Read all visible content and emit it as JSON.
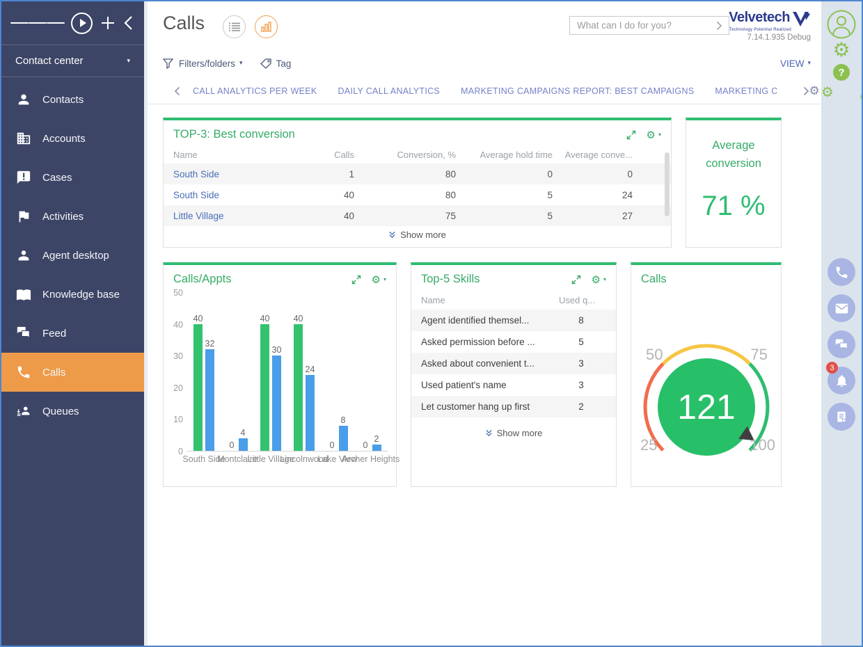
{
  "sidebar": {
    "workspace": "Contact center",
    "header_icons": [
      "menu-icon",
      "run-process-icon",
      "add-icon",
      "collapse-icon"
    ],
    "items": [
      {
        "label": "Contacts",
        "icon": "person-icon",
        "active": false
      },
      {
        "label": "Accounts",
        "icon": "building-icon",
        "active": false
      },
      {
        "label": "Cases",
        "icon": "case-bubble-icon",
        "active": false
      },
      {
        "label": "Activities",
        "icon": "flag-icon",
        "active": false
      },
      {
        "label": "Agent desktop",
        "icon": "agent-icon",
        "active": false
      },
      {
        "label": "Knowledge base",
        "icon": "book-icon",
        "active": false
      },
      {
        "label": "Feed",
        "icon": "feed-bubbles-icon",
        "active": false
      },
      {
        "label": "Calls",
        "icon": "phone-icon",
        "active": true
      },
      {
        "label": "Queues",
        "icon": "queue-person-icon",
        "active": false
      }
    ]
  },
  "topbar": {
    "title": "Calls",
    "search_placeholder": "What can I do for you?",
    "logo": {
      "name": "Velvetech",
      "tagline": "Technology Potential Realized",
      "version": "7.14.1.935 Debug"
    }
  },
  "filterbar": {
    "filters_label": "Filters/folders",
    "tag_label": "Tag",
    "view_label": "VIEW"
  },
  "tabs": {
    "items": [
      "CALL ANALYTICS PER WEEK",
      "DAILY CALL ANALYTICS",
      "MARKETING CAMPAIGNS REPORT: BEST CAMPAIGNS",
      "MARKETING C"
    ]
  },
  "widgets": {
    "top3": {
      "title": "TOP-3: Best conversion",
      "columns": [
        "Name",
        "Calls",
        "Conversion, %",
        "Average hold time",
        "Average conve..."
      ],
      "rows": [
        {
          "name": "South Side",
          "calls": "1",
          "conversion": "80",
          "hold": "0",
          "conve": "0"
        },
        {
          "name": "South Side",
          "calls": "40",
          "conversion": "80",
          "hold": "5",
          "conve": "24"
        },
        {
          "name": "Little Village",
          "calls": "40",
          "conversion": "75",
          "hold": "5",
          "conve": "27"
        }
      ],
      "show_more": "Show more"
    },
    "avg": {
      "title_line1": "Average",
      "title_line2": "conversion",
      "value": "71 %"
    },
    "skills": {
      "title": "Top-5 Skills",
      "columns": [
        "Name",
        "Used q..."
      ],
      "rows": [
        {
          "name": "Agent identified themsel...",
          "value": "8"
        },
        {
          "name": "Asked permission before ...",
          "value": "5"
        },
        {
          "name": "Asked about convenient t...",
          "value": "3"
        },
        {
          "name": "Used patient's name",
          "value": "3"
        },
        {
          "name": "Let customer hang up first",
          "value": "2"
        }
      ],
      "show_more": "Show more"
    },
    "gauge": {
      "title": "Calls",
      "value": "121",
      "tick_25": "25",
      "tick_50": "50",
      "tick_75": "75",
      "tick_100": "100"
    },
    "chart": {
      "title": "Calls/Appts"
    }
  },
  "chart_data": [
    {
      "type": "bar",
      "title": "Calls/Appts",
      "categories": [
        "South Side",
        "Montclaire",
        "Little Village",
        "Lincolnwood",
        "Lake View",
        "Archer Heights"
      ],
      "series": [
        {
          "name": "Calls",
          "color": "#33c36e",
          "values": [
            40,
            0,
            40,
            40,
            0,
            0
          ]
        },
        {
          "name": "Appts",
          "color": "#4a9de8",
          "values": [
            32,
            4,
            30,
            24,
            8,
            2
          ]
        }
      ],
      "ylabel": "",
      "xlabel": "",
      "ylim": [
        0,
        50
      ],
      "yticks": [
        0,
        10,
        20,
        30,
        40,
        50
      ],
      "grid": false,
      "legend": "none",
      "value_labels": true
    },
    {
      "type": "gauge",
      "title": "Calls",
      "value": 121,
      "min": 25,
      "max": 100,
      "ticks": [
        25,
        50,
        75,
        100
      ],
      "segments": [
        {
          "from": 25,
          "to": 50,
          "color": "#f26c4f"
        },
        {
          "from": 50,
          "to": 75,
          "color": "#f6c543"
        },
        {
          "from": 75,
          "to": 100,
          "color": "#2fbd71"
        }
      ]
    }
  ],
  "rightbar": {
    "top_icons": [
      "user-avatar-icon",
      "settings-gear-icon",
      "help-icon",
      "system-settings-icon"
    ],
    "bottom_icons": [
      "phone-icon",
      "email-icon",
      "chat-icon",
      "notifications-bell-icon",
      "tasks-icon"
    ],
    "notification_badge": "3"
  },
  "colors": {
    "accent_green": "#2fbd71",
    "accent_orange": "#ee9b49",
    "sidebar_bg": "#3d4566",
    "link_blue": "#4a6db8",
    "tab_blue": "#7481c7",
    "bar_green": "#33c36e",
    "bar_blue": "#4a9de8",
    "gauge_red": "#f26c4f",
    "gauge_yellow": "#f6c543",
    "gauge_center": "#28bf69",
    "rail_icon_blue": "#a9b5e2",
    "rail_icon_green": "#8cc152",
    "badge_red": "#e0504a"
  }
}
